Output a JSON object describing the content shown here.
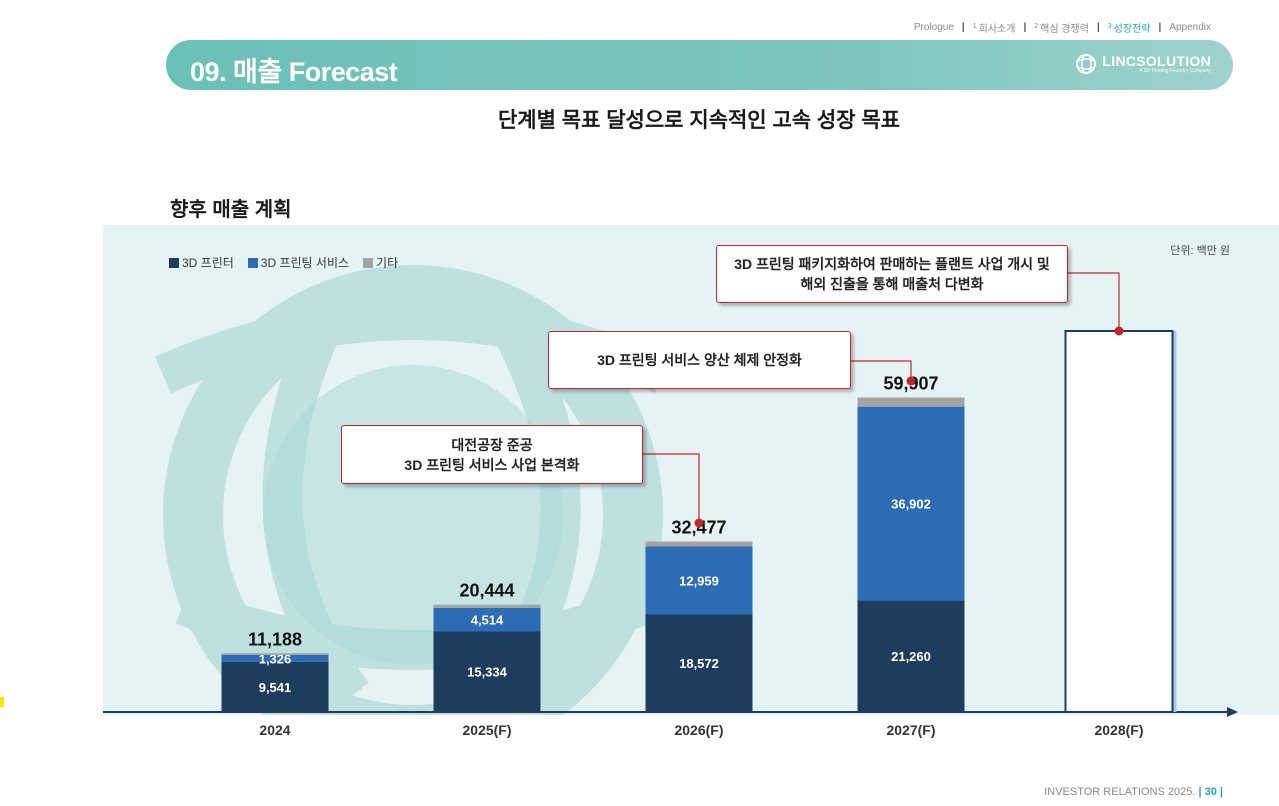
{
  "nav": {
    "prologue": "Prologue",
    "item1_num": "1",
    "item1": "회사소개",
    "item2_num": "2",
    "item2": "핵심 경쟁력",
    "item3_num": "3",
    "item3": "성장전략",
    "appendix": "Appendix"
  },
  "banner": {
    "title": "09. 매출 Forecast"
  },
  "logo": {
    "name": "LINCSOLUTION",
    "tagline": "A 3D Printing Foundry Company"
  },
  "subtitle": "단계별 목표 달성으로 지속적인 고속 성장 목표",
  "section_title": "향후 매출 계획",
  "unit": "단위: 백만 원",
  "legend": [
    {
      "label": "3D 프린터",
      "color": "#1d3c5e"
    },
    {
      "label": "3D 프린팅 서비스",
      "color": "#2b6cb5"
    },
    {
      "label": "기타",
      "color": "#a3a3a3"
    }
  ],
  "callouts": {
    "c2026_line1": "대전공장 준공",
    "c2026_line2": "3D 프린팅 서비스 사업 본격화",
    "c2027": "3D 프린팅 서비스 양산 체제 안정화",
    "c2028_line1": "3D 프린팅  패키지화하여 판매하는 플랜트 사업 개시 및",
    "c2028_line2": "해외 진출을 통해 매출처 다변화"
  },
  "chart_data": {
    "type": "bar",
    "stacked": true,
    "title": "향후 매출 계획",
    "unit": "백만 원",
    "categories": [
      "2024",
      "2025(F)",
      "2026(F)",
      "2027(F)",
      "2028(F)"
    ],
    "series": [
      {
        "name": "3D 프린터",
        "values": [
          9541,
          15334,
          18572,
          21260,
          null
        ],
        "color": "#1d3c5e"
      },
      {
        "name": "3D 프린팅 서비스",
        "values": [
          1326,
          4514,
          12959,
          36902,
          null
        ],
        "color": "#2b6cb5"
      },
      {
        "name": "기타",
        "values": [
          321,
          596,
          946,
          1745,
          null
        ],
        "color": "#a3a3a3"
      }
    ],
    "totals": [
      "11,188",
      "20,444",
      "32,477",
      "59,907",
      ""
    ],
    "ylim": [
      0,
      80000
    ]
  },
  "footer": {
    "label": "INVESTOR RELATIONS 2025.",
    "page": "30"
  }
}
